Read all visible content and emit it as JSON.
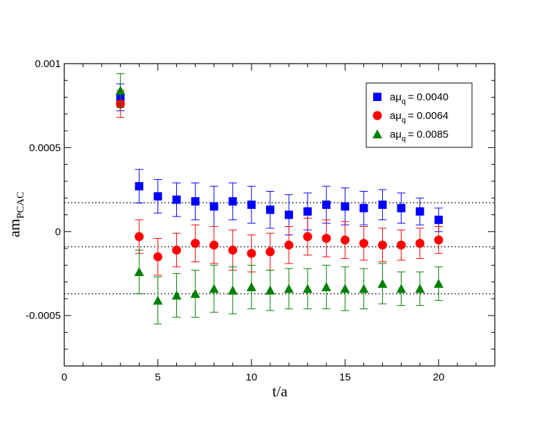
{
  "chart_data": {
    "type": "scatter",
    "title": "",
    "xlabel": "t/a",
    "ylabel_main": "am",
    "ylabel_sub": "PCAC",
    "xlim": [
      0,
      23
    ],
    "ylim": [
      -0.0008,
      0.001
    ],
    "x_major_ticks": [
      0,
      5,
      10,
      15,
      20
    ],
    "x_tick_labels": [
      "0",
      "5",
      "10",
      "15",
      "20"
    ],
    "y_major_ticks": [
      0.001,
      0.0005,
      0,
      -0.0005
    ],
    "y_tick_labels": [
      "0.001",
      "0.0005",
      "0",
      "-0.0005"
    ],
    "grid": false,
    "legend_position": "top-right",
    "legend_prefix": "aμ",
    "legend_sub": "q",
    "series": [
      {
        "name": "aμq = 0.0040",
        "legend_value": "= 0.0040",
        "marker": "square",
        "color": "#0000ff",
        "fit_level": 0.000172,
        "points": [
          {
            "x": 3,
            "y": 0.0008,
            "err": 8e-05
          },
          {
            "x": 4,
            "y": 0.00027,
            "err": 0.0001
          },
          {
            "x": 5,
            "y": 0.00021,
            "err": 0.0001
          },
          {
            "x": 6,
            "y": 0.00019,
            "err": 0.0001
          },
          {
            "x": 7,
            "y": 0.00018,
            "err": 0.00011
          },
          {
            "x": 8,
            "y": 0.00015,
            "err": 0.00012
          },
          {
            "x": 9,
            "y": 0.00018,
            "err": 0.00011
          },
          {
            "x": 10,
            "y": 0.00016,
            "err": 0.00011
          },
          {
            "x": 11,
            "y": 0.00013,
            "err": 0.00011
          },
          {
            "x": 12,
            "y": 0.0001,
            "err": 0.00012
          },
          {
            "x": 13,
            "y": 0.00012,
            "err": 0.00011
          },
          {
            "x": 14,
            "y": 0.00016,
            "err": 0.00011
          },
          {
            "x": 15,
            "y": 0.00015,
            "err": 0.00011
          },
          {
            "x": 16,
            "y": 0.00014,
            "err": 0.0001
          },
          {
            "x": 17,
            "y": 0.00016,
            "err": 9e-05
          },
          {
            "x": 18,
            "y": 0.00014,
            "err": 9e-05
          },
          {
            "x": 19,
            "y": 0.00012,
            "err": 8e-05
          },
          {
            "x": 20,
            "y": 7e-05,
            "err": 7e-05
          }
        ]
      },
      {
        "name": "aμq = 0.0064",
        "legend_value": "= 0.0064",
        "marker": "circle",
        "color": "#ff0000",
        "fit_level": -9e-05,
        "points": [
          {
            "x": 3,
            "y": 0.00076,
            "err": 8e-05
          },
          {
            "x": 4,
            "y": -3e-05,
            "err": 0.0001
          },
          {
            "x": 5,
            "y": -0.00015,
            "err": 0.00011
          },
          {
            "x": 6,
            "y": -0.00011,
            "err": 0.0001
          },
          {
            "x": 7,
            "y": -7e-05,
            "err": 0.00011
          },
          {
            "x": 8,
            "y": -8e-05,
            "err": 0.00011
          },
          {
            "x": 9,
            "y": -0.00011,
            "err": 0.00012
          },
          {
            "x": 10,
            "y": -0.00013,
            "err": 0.00011
          },
          {
            "x": 11,
            "y": -0.00012,
            "err": 0.00011
          },
          {
            "x": 12,
            "y": -8e-05,
            "err": 0.00011
          },
          {
            "x": 13,
            "y": -3e-05,
            "err": 0.00011
          },
          {
            "x": 14,
            "y": -4e-05,
            "err": 0.00011
          },
          {
            "x": 15,
            "y": -5e-05,
            "err": 0.00011
          },
          {
            "x": 16,
            "y": -7e-05,
            "err": 0.0001
          },
          {
            "x": 17,
            "y": -8e-05,
            "err": 0.0001
          },
          {
            "x": 18,
            "y": -8e-05,
            "err": 9e-05
          },
          {
            "x": 19,
            "y": -7e-05,
            "err": 9e-05
          },
          {
            "x": 20,
            "y": -5e-05,
            "err": 8e-05
          }
        ]
      },
      {
        "name": "aμq = 0.0085",
        "legend_value": "= 0.0085",
        "marker": "triangle",
        "color": "#008000",
        "fit_level": -0.00037,
        "points": [
          {
            "x": 3,
            "y": 0.00084,
            "err": 0.0001
          },
          {
            "x": 4,
            "y": -0.00024,
            "err": 0.00013
          },
          {
            "x": 5,
            "y": -0.00041,
            "err": 0.00014
          },
          {
            "x": 6,
            "y": -0.00038,
            "err": 0.00013
          },
          {
            "x": 7,
            "y": -0.00037,
            "err": 0.00014
          },
          {
            "x": 8,
            "y": -0.00034,
            "err": 0.00014
          },
          {
            "x": 9,
            "y": -0.00035,
            "err": 0.00014
          },
          {
            "x": 10,
            "y": -0.00033,
            "err": 0.00013
          },
          {
            "x": 11,
            "y": -0.00035,
            "err": 0.00012
          },
          {
            "x": 12,
            "y": -0.00034,
            "err": 0.00012
          },
          {
            "x": 13,
            "y": -0.00034,
            "err": 0.00012
          },
          {
            "x": 14,
            "y": -0.00033,
            "err": 0.00013
          },
          {
            "x": 15,
            "y": -0.00034,
            "err": 0.00013
          },
          {
            "x": 16,
            "y": -0.00034,
            "err": 0.00012
          },
          {
            "x": 17,
            "y": -0.00031,
            "err": 0.00012
          },
          {
            "x": 18,
            "y": -0.00034,
            "err": 0.0001
          },
          {
            "x": 19,
            "y": -0.00034,
            "err": 0.0001
          },
          {
            "x": 20,
            "y": -0.00031,
            "err": 0.0001
          }
        ]
      }
    ]
  }
}
